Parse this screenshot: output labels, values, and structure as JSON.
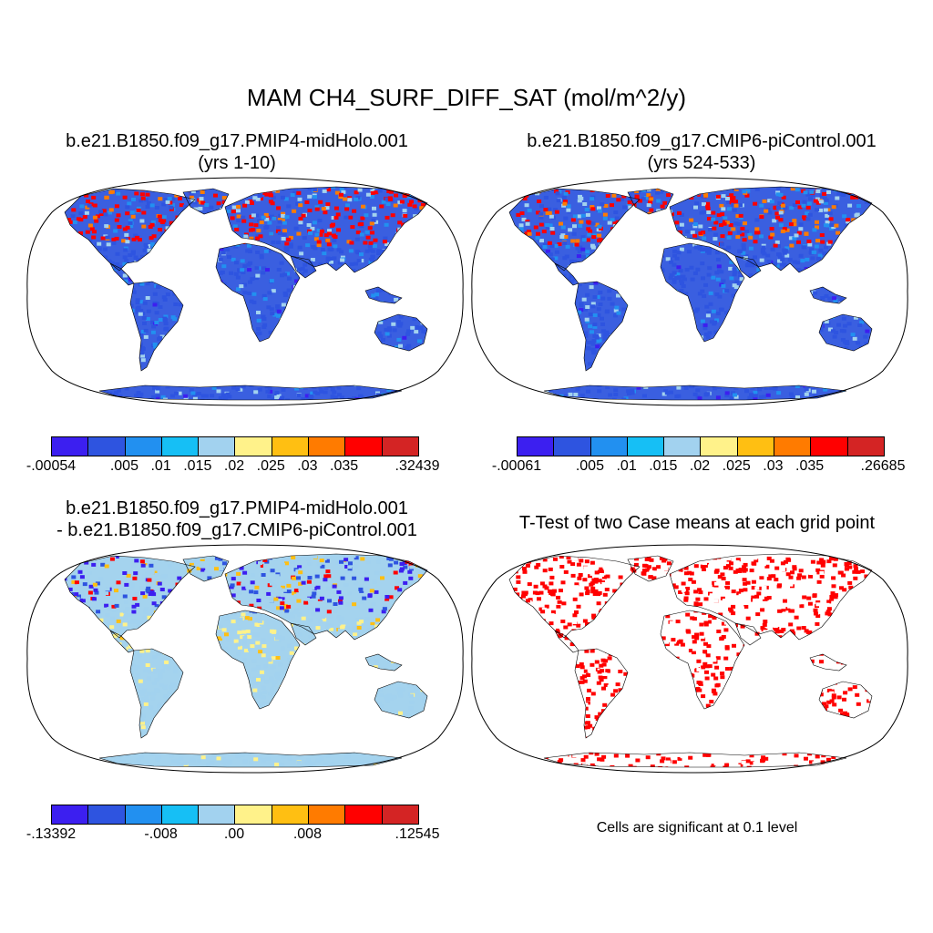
{
  "title": "MAM CH4_SURF_DIFF_SAT (mol/m^2/y)",
  "panels": [
    {
      "title_line1": "b.e21.B1850.f09_g17.PMIP4-midHolo.001",
      "title_line2": "(yrs 1-10)"
    },
    {
      "title_line1": "b.e21.B1850.f09_g17.CMIP6-piControl.001",
      "title_line2": "(yrs 524-533)"
    },
    {
      "title_line1": "b.e21.B1850.f09_g17.PMIP4-midHolo.001",
      "title_line2": "- b.e21.B1850.f09_g17.CMIP6-piControl.001"
    },
    {
      "title_line1": "T-Test of two Case means at each grid point"
    }
  ],
  "colorbars": [
    {
      "labels": [
        "-.00054",
        ".005",
        ".01",
        ".015",
        ".02",
        ".025",
        ".03",
        ".035",
        ".32439"
      ]
    },
    {
      "labels": [
        "-.00061",
        ".005",
        ".01",
        ".015",
        ".02",
        ".025",
        ".03",
        ".035",
        ".26685"
      ]
    },
    {
      "labels": [
        "-.13392",
        "-.008",
        ".00",
        ".008",
        ".12545"
      ]
    }
  ],
  "significance_note": "Cells are significant at 0.1 level",
  "colors": {
    "palette": [
      "#3c1ff0",
      "#2e54e0",
      "#2290f0",
      "#16bff5",
      "#a2d2ef",
      "#fff28a",
      "#ffbf12",
      "#ff7b00",
      "#ff0000",
      "#d42424"
    ],
    "land_base_abs": "#3a5fe0",
    "land_base_diff": "#a4d3ee",
    "ttest": "#ff0000"
  }
}
